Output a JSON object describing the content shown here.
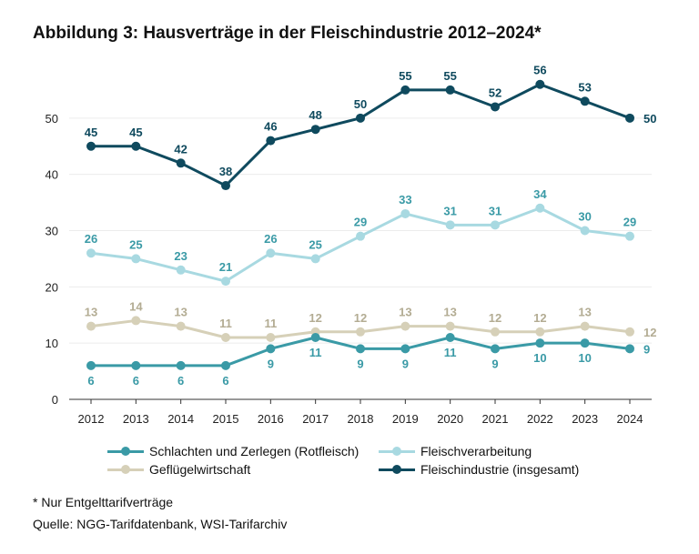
{
  "title": "Abbildung 3: Hausverträge in der Fleischindustrie 2012–2024*",
  "footnote": "* Nur Entgelttarifverträge",
  "source": "Quelle: NGG-Tarifdatenbank, WSI-Tarifarchiv",
  "chart_data": {
    "type": "line",
    "title": "Abbildung 3: Hausverträge in der Fleischindustrie 2012–2024*",
    "xlabel": "",
    "ylabel": "",
    "ylim": [
      0,
      60
    ],
    "yticks": [
      "0",
      "10",
      "20",
      "30",
      "40",
      "50"
    ],
    "categories": [
      "2012",
      "2013",
      "2014",
      "2015",
      "2016",
      "2017",
      "2018",
      "2019",
      "2020",
      "2021",
      "2022",
      "2023",
      "2024"
    ],
    "legend_position": "bottom",
    "series": [
      {
        "name": "Schlachten und Zerlegen (Rotfleisch)",
        "color": "#3a9aa6",
        "label_color": "#3a9aa6",
        "values": [
          6,
          6,
          6,
          6,
          9,
          11,
          9,
          9,
          11,
          9,
          10,
          10,
          9
        ],
        "label_pos": [
          "below",
          "below",
          "below",
          "below",
          "below",
          "below",
          "below",
          "below",
          "below",
          "below",
          "below",
          "below",
          "right"
        ]
      },
      {
        "name": "Fleischverarbeitung",
        "color": "#a8d9e1",
        "label_color": "#3a9aa6",
        "values": [
          26,
          25,
          23,
          21,
          26,
          25,
          29,
          33,
          31,
          31,
          34,
          30,
          29
        ],
        "label_pos": [
          "above",
          "above",
          "above",
          "above",
          "above",
          "above",
          "above",
          "above",
          "above",
          "above",
          "above",
          "above",
          "above"
        ]
      },
      {
        "name": "Geflügelwirtschaft",
        "color": "#d6d0b8",
        "label_color": "#b3ac93",
        "values": [
          13,
          14,
          13,
          11,
          11,
          12,
          12,
          13,
          13,
          12,
          12,
          13,
          12
        ],
        "label_pos": [
          "above",
          "above",
          "above",
          "above",
          "above",
          "above",
          "above",
          "above",
          "above",
          "above",
          "above",
          "above",
          "right"
        ]
      },
      {
        "name": "Fleischindustrie (insgesamt)",
        "color": "#0f4a5e",
        "label_color": "#0f4a5e",
        "values": [
          45,
          45,
          42,
          38,
          46,
          48,
          50,
          55,
          55,
          52,
          56,
          53,
          50
        ],
        "label_pos": [
          "above",
          "above",
          "above",
          "above",
          "above",
          "above",
          "above",
          "above",
          "above",
          "above",
          "above",
          "above",
          "right"
        ]
      }
    ]
  }
}
